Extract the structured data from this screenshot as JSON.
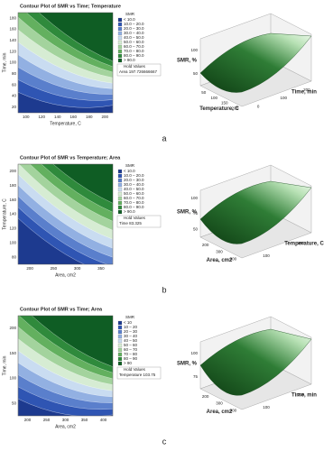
{
  "figure": {
    "panels": [
      {
        "label": "a",
        "contour": {
          "title": "Contour Plot of SMR vs Time; Temperature",
          "x_label": "Temperature, C",
          "y_label": "Time, min",
          "x_ticks": [
            "100",
            "120",
            "140",
            "160",
            "180",
            "200"
          ],
          "y_ticks": [
            "20",
            "40",
            "60",
            "80",
            "100",
            "120",
            "140",
            "160",
            "180"
          ],
          "legend_title": "SMR",
          "levels": [
            "< 10.0",
            "10.0 – 20.0",
            "20.0 – 30.0",
            "30.0 – 40.0",
            "40.0 – 50.0",
            "50.0 – 60.0",
            "60.0 – 70.0",
            "70.0 – 80.0",
            "80.0 – 90.0",
            "> 90.0"
          ],
          "hold_title": "Hold Values",
          "hold": "Area 197.726666667"
        },
        "surface": {
          "z_label": "SMR, %",
          "x_label": "Temperature, C",
          "y_label": "Time, min",
          "z_ticks": [
            "50",
            "100"
          ],
          "x_ticks": [
            "50",
            "100",
            "150",
            "200"
          ],
          "y_ticks": [
            "0",
            "100",
            "200"
          ]
        }
      },
      {
        "label": "b",
        "contour": {
          "title": "Contour Plot of SMR vs Temperature; Area",
          "x_label": "Area, cm2",
          "y_label": "Temperature, C",
          "x_ticks": [
            "200",
            "250",
            "300",
            "350"
          ],
          "y_ticks": [
            "80",
            "100",
            "120",
            "140",
            "160",
            "180",
            "200"
          ],
          "legend_title": "SMR",
          "levels": [
            "< 10.0",
            "10.0 – 20.0",
            "20.0 – 30.0",
            "30.0 – 40.0",
            "40.0 – 50.0",
            "50.0 – 60.0",
            "60.0 – 70.0",
            "70.0 – 80.0",
            "80.0 – 90.0",
            "> 90.0"
          ],
          "hold_title": "Hold Values",
          "hold": "Time 83.325"
        },
        "surface": {
          "z_label": "SMR, %",
          "x_label": "Area, cm2",
          "y_label": "Temperature, C",
          "z_ticks": [
            "50",
            "75",
            "100"
          ],
          "x_ticks": [
            "200",
            "300",
            "400"
          ],
          "y_ticks": [
            "100",
            "200"
          ]
        }
      },
      {
        "label": "c",
        "contour": {
          "title": "Contour Plot of SMR vs Time; Area",
          "x_label": "Area, cm2",
          "y_label": "Time, min",
          "x_ticks": [
            "200",
            "250",
            "300",
            "350",
            "400"
          ],
          "y_ticks": [
            "50",
            "100",
            "150",
            "200"
          ],
          "legend_title": "SMR",
          "levels": [
            "< 10",
            "10 – 20",
            "20 – 30",
            "30 – 40",
            "40 – 50",
            "50 – 60",
            "60 – 70",
            "70 – 80",
            "80 – 90",
            "> 90"
          ],
          "hold_title": "Hold Values",
          "hold": "Temperature 103.75"
        },
        "surface": {
          "z_label": "SMR, %",
          "x_label": "Area, cm2",
          "y_label": "Time, min",
          "z_ticks": [
            "75",
            "100"
          ],
          "x_ticks": [
            "200",
            "300",
            "400"
          ],
          "y_ticks": [
            "100",
            "200"
          ]
        }
      }
    ]
  }
}
